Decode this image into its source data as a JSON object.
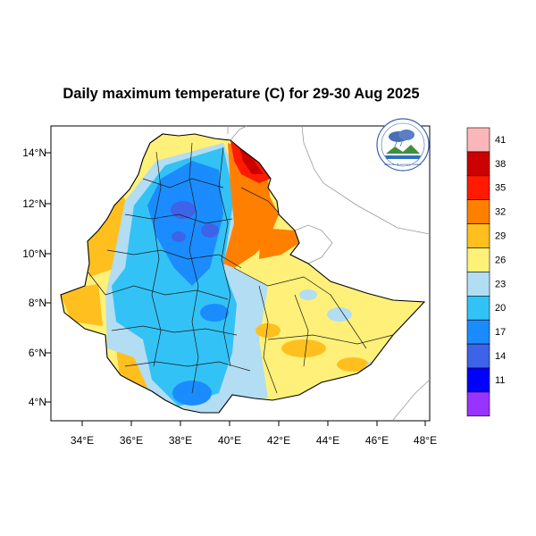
{
  "title": "Daily maximum temperature (C) for 29-30 Aug 2025",
  "map": {
    "region": "Ethiopia",
    "lon_ticks": [
      "34°E",
      "36°E",
      "38°E",
      "40°E",
      "42°E",
      "44°E",
      "46°E",
      "48°E"
    ],
    "lat_ticks": [
      "4°N",
      "6°N",
      "8°N",
      "10°N",
      "12°N",
      "14°N"
    ],
    "lon_range": [
      32.8,
      48.2
    ],
    "lat_range": [
      3.2,
      15.0
    ]
  },
  "colorbar": {
    "labels": [
      "41",
      "38",
      "35",
      "32",
      "29",
      "26",
      "23",
      "20",
      "17",
      "14",
      "11"
    ],
    "colors": [
      "#fbb6b9",
      "#cc0000",
      "#ff1a00",
      "#ff8000",
      "#ffbf1f",
      "#fff07a",
      "#b2ddf2",
      "#33c2f5",
      "#1a8cff",
      "#3d63e8",
      "#0000ff",
      "#9933ff"
    ]
  },
  "logo": {
    "caption": "Ethiopian Meteorology Institute"
  }
}
